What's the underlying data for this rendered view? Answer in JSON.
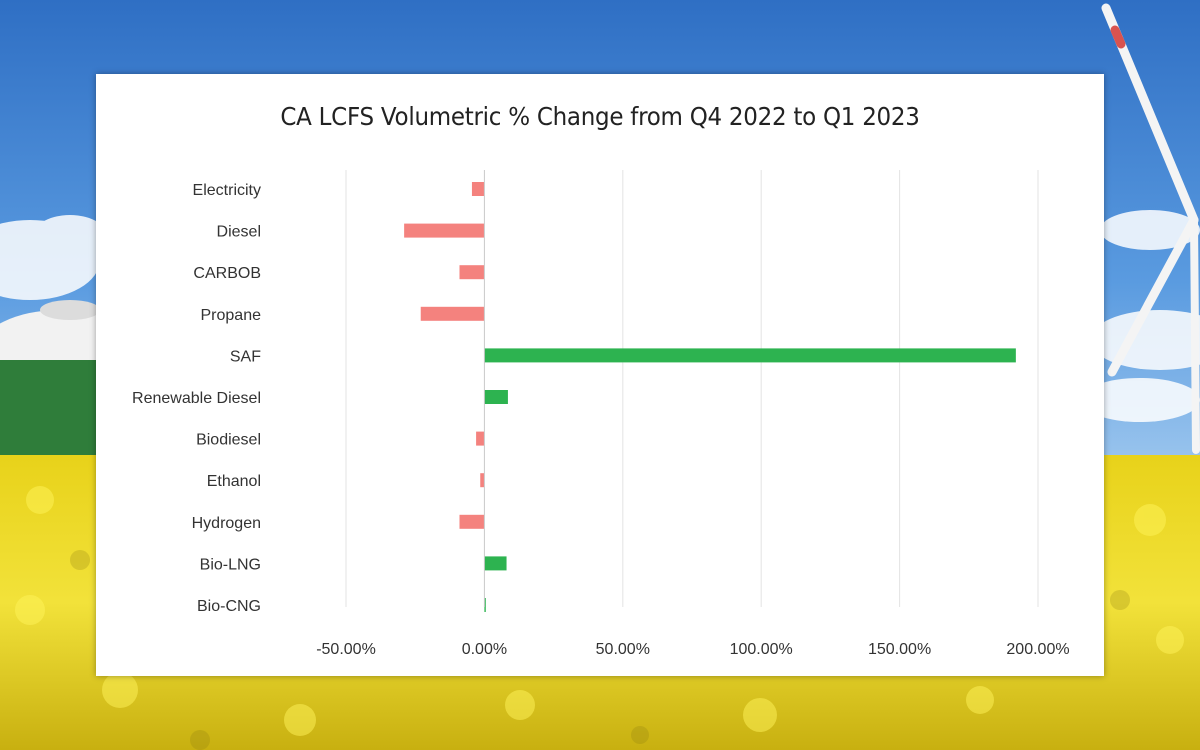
{
  "chart_data": {
    "type": "bar",
    "orientation": "horizontal",
    "title": "CA LCFS Volumetric % Change from Q4 2022 to Q1 2023",
    "categories": [
      "Electricity",
      "Diesel",
      "CARBOB",
      "Propane",
      "SAF",
      "Renewable Diesel",
      "Biodiesel",
      "Ethanol",
      "Hydrogen",
      "Bio-LNG",
      "Bio-CNG"
    ],
    "values": [
      -4.5,
      -29,
      -9,
      -23,
      192,
      8.5,
      -3,
      -1.5,
      -9,
      8,
      0.5
    ],
    "xlim": [
      -50,
      200
    ],
    "xticks": [
      -50,
      0,
      50,
      100,
      150,
      200
    ],
    "xtick_labels": [
      "-50.00%",
      "0.00%",
      "50.00%",
      "100.00%",
      "150.00%",
      "200.00%"
    ],
    "value_unit": "%",
    "grid": true,
    "colors": {
      "positive": "#2db350",
      "negative": "#f4827e",
      "grid": "#e3e3e3",
      "axis": "#c8c8c8"
    }
  }
}
